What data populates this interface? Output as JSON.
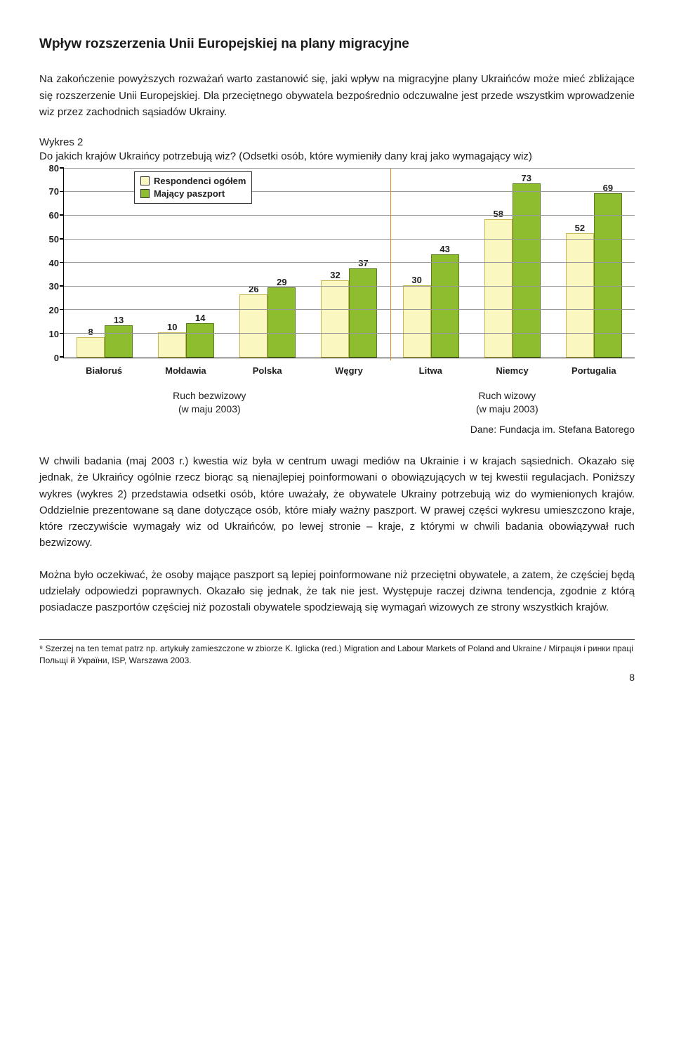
{
  "title": "Wpływ rozszerzenia Unii Europejskiej na plany migracyjne",
  "para1": "Na zakończenie powyższych rozważań warto zastanowić się, jaki wpływ na migracyjne plany Ukraińców może mieć zbliżające się rozszerzenie Unii Europejskiej. Dla przeciętnego obywatela bezpośrednio odczuwalne jest przede wszystkim wprowadzenie wiz przez zachodnich sąsiadów Ukrainy.",
  "chart_caption_line1": "Wykres 2",
  "chart_caption_line2": "Do jakich krajów Ukraińcy potrzebują wiz? (Odsetki osób, które wymieniły dany kraj jako wymagający wiz)",
  "chart": {
    "type": "bar",
    "ylim": [
      0,
      80
    ],
    "ytick_step": 10,
    "legend": [
      {
        "label": "Respondenci ogółem",
        "color": "#fbf7c0"
      },
      {
        "label": "Mający paszport",
        "color": "#8ebe2f"
      }
    ],
    "categories": [
      "Białoruś",
      "Mołdawia",
      "Polska",
      "Węgry",
      "Litwa",
      "Niemcy",
      "Portugalia"
    ],
    "series1": [
      8,
      10,
      26,
      32,
      30,
      58,
      52
    ],
    "series2": [
      13,
      14,
      29,
      37,
      43,
      73,
      69
    ],
    "color1": "#fbf7c0",
    "color1_border": "#c9b84f",
    "color2": "#8ebe2f",
    "color2_border": "#5a7d1d",
    "grid_color": "#999999",
    "divider_after_index": 4,
    "divider_color": "#e78a1f",
    "label_fontsize": 13
  },
  "sub_left_a": "Ruch bezwizowy",
  "sub_left_b": "(w maju 2003)",
  "sub_right_a": "Ruch wizowy",
  "sub_right_b": "(w maju 2003)",
  "dane": "Dane: Fundacja im. Stefana Batorego",
  "para2": "W chwili badania (maj 2003 r.) kwestia wiz była w centrum uwagi mediów na Ukrainie i w krajach sąsiednich. Okazało się jednak, że Ukraińcy ogólnie rzecz biorąc są nienajlepiej poinformowani o obowiązujących w tej kwestii regulacjach. Poniższy wykres (wykres 2) przedstawia odsetki osób, które uważały, że obywatele Ukrainy potrzebują wiz do wymienionych krajów. Oddzielnie prezentowane są dane dotyczące osób, które miały ważny paszport. W prawej części wykresu umieszczono kraje, które rzeczywiście wymagały wiz od Ukraińców, po lewej stronie – kraje, z którymi w chwili badania obowiązywał ruch bezwizowy.",
  "para3": "Można było oczekiwać, że osoby mające paszport są lepiej poinformowane niż przeciętni obywatele, a zatem, że częściej będą udzielały odpowiedzi poprawnych. Okazało się jednak, że tak nie jest. Występuje raczej dziwna tendencja, zgodnie z którą posiadacze paszportów częściej niż pozostali obywatele spodziewają się wymagań wizowych ze strony wszystkich krajów.",
  "footnote": "⁹ Szerzej na ten temat patrz np. artykuły zamieszczone w zbiorze K. Iglicka (red.) Migration and Labour Markets of Poland and Ukraine / Міграція і ринки праці Польщі й України, ISP, Warszawa 2003.",
  "pagenum": "8"
}
